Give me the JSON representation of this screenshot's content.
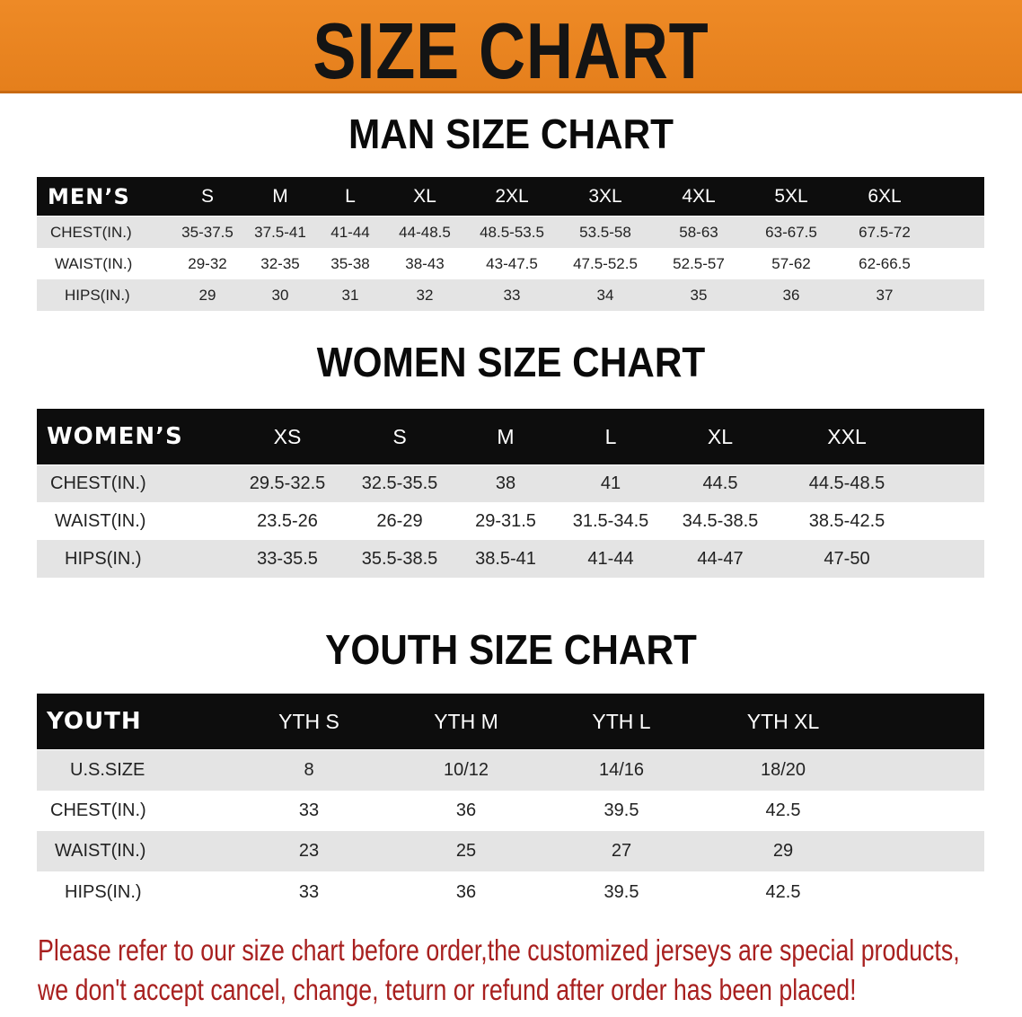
{
  "banner": {
    "title": "SIZE CHART",
    "color": "#e98420"
  },
  "men": {
    "title": "MAN SIZE CHART",
    "header": "MEN’S",
    "sizes": [
      "S",
      "M",
      "L",
      "XL",
      "2XL",
      "3XL",
      "4XL",
      "5XL",
      "6XL"
    ],
    "rows": [
      {
        "label": "CHEST(IN.)",
        "values": [
          "35-37.5",
          "37.5-41",
          "41-44",
          "44-48.5",
          "48.5-53.5",
          "53.5-58",
          "58-63",
          "63-67.5",
          "67.5-72"
        ]
      },
      {
        "label": "WAIST(IN.)",
        "values": [
          "29-32",
          "32-35",
          "35-38",
          "38-43",
          "43-47.5",
          "47.5-52.5",
          "52.5-57",
          "57-62",
          "62-66.5"
        ]
      },
      {
        "label": "HIPS(IN.)",
        "values": [
          "29",
          "30",
          "31",
          "32",
          "33",
          "34",
          "35",
          "36",
          "37"
        ]
      }
    ]
  },
  "women": {
    "title": "WOMEN SIZE CHART",
    "header": "WOMEN’S",
    "sizes": [
      "XS",
      "S",
      "M",
      "L",
      "XL",
      "XXL"
    ],
    "rows": [
      {
        "label": "CHEST(IN.)",
        "values": [
          "29.5-32.5",
          "32.5-35.5",
          "38",
          "41",
          "44.5",
          "44.5-48.5"
        ]
      },
      {
        "label": "WAIST(IN.)",
        "values": [
          "23.5-26",
          "26-29",
          "29-31.5",
          "31.5-34.5",
          "34.5-38.5",
          "38.5-42.5"
        ]
      },
      {
        "label": "HIPS(IN.)",
        "values": [
          "33-35.5",
          "35.5-38.5",
          "38.5-41",
          "41-44",
          "44-47",
          "47-50"
        ]
      }
    ]
  },
  "youth": {
    "title": "YOUTH SIZE CHART",
    "header": "YOUTH",
    "sizes": [
      "YTH S",
      "YTH M",
      "YTH L",
      "YTH XL"
    ],
    "rows": [
      {
        "label": "U.S.SIZE",
        "values": [
          "8",
          "10/12",
          "14/16",
          "18/20"
        ]
      },
      {
        "label": "CHEST(IN.)",
        "values": [
          "33",
          "36",
          "39.5",
          "42.5"
        ]
      },
      {
        "label": "WAIST(IN.)",
        "values": [
          "23",
          "25",
          "27",
          "29"
        ]
      },
      {
        "label": "HIPS(IN.)",
        "values": [
          "33",
          "36",
          "39.5",
          "42.5"
        ]
      }
    ]
  },
  "notice": {
    "line1": "Please refer to our size chart before order,the customized jerseys are special products,",
    "line2": "we don't accept cancel, change, teturn or refund after order has been placed!",
    "color": "#a8201f"
  }
}
